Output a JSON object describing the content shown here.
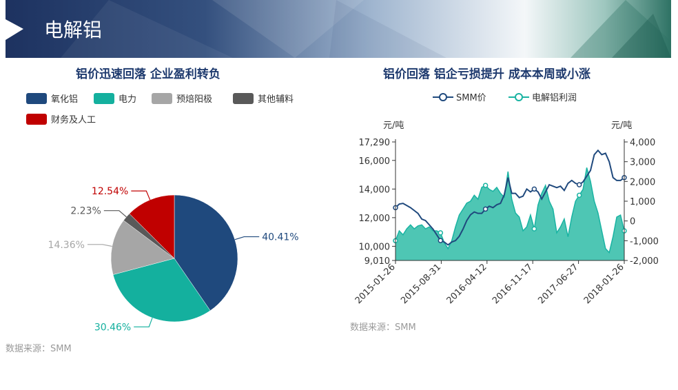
{
  "banner": {
    "title": "电解铝"
  },
  "chart_data": [
    {
      "type": "pie",
      "title": "铝价迅速回落 企业盈利转负",
      "source": "数据来源：SMM",
      "slices": [
        {
          "name": "氧化铝",
          "value": 40.41,
          "label": "40.41%",
          "color": "#1f497d"
        },
        {
          "name": "电力",
          "value": 30.46,
          "label": "30.46%",
          "color": "#14b09e"
        },
        {
          "name": "预焙阳极",
          "value": 14.36,
          "label": "14.36%",
          "color": "#a6a6a6"
        },
        {
          "name": "其他辅料",
          "value": 2.23,
          "label": "2.23%",
          "color": "#595959"
        },
        {
          "name": "财务及人工",
          "value": 12.54,
          "label": "12.54%",
          "color": "#c00000"
        }
      ]
    },
    {
      "type": "line",
      "title": "铝价回落 铝企亏损提升 成本本周或小涨",
      "source": "数据来源：SMM",
      "left_unit": "元/吨",
      "right_unit": "元/吨",
      "left_ticks": [
        "17,290",
        "16,000",
        "14,000",
        "12,000",
        "10,000",
        "9,010"
      ],
      "right_ticks": [
        "4,000",
        "3,000",
        "2,000",
        "1,000",
        "0",
        "-1,000",
        "-2,000"
      ],
      "x_ticks": [
        "2015-01-26",
        "2015-08-31",
        "2016-04-12",
        "2016-11-17",
        "2017-06-27",
        "2018-01-26"
      ],
      "ylim_left": [
        9010,
        17290
      ],
      "ylim_right": [
        -2000,
        4000
      ],
      "series": [
        {
          "name": "SMM价",
          "axis": "left",
          "style": "line",
          "color": "#1f497d",
          "values": [
            12700,
            12950,
            13000,
            12850,
            12700,
            12500,
            12300,
            11900,
            11800,
            11500,
            11200,
            10800,
            10400,
            10300,
            10100,
            10300,
            10400,
            10700,
            11200,
            11800,
            12200,
            12400,
            12300,
            12300,
            12600,
            12800,
            12700,
            12900,
            13000,
            13600,
            14800,
            13700,
            13700,
            13400,
            13500,
            14000,
            13800,
            14000,
            13800,
            13300,
            13800,
            14300,
            14200,
            14100,
            14200,
            13900,
            14400,
            14600,
            14400,
            14300,
            14500,
            14900,
            15300,
            16400,
            16700,
            16400,
            16500,
            15900,
            14800,
            14600,
            14600,
            14800
          ]
        },
        {
          "name": "电解铝利润",
          "axis": "right",
          "style": "area",
          "color": "#19b3a2",
          "fill": "#4ec6b4",
          "values": [
            -1000,
            -500,
            -700,
            -400,
            -200,
            -400,
            -250,
            -200,
            -400,
            -300,
            -500,
            -500,
            -600,
            -1100,
            -1400,
            -1000,
            -300,
            300,
            600,
            900,
            1000,
            1300,
            1100,
            1700,
            1800,
            1600,
            1500,
            1700,
            1400,
            1200,
            2500,
            1100,
            400,
            200,
            -500,
            -300,
            300,
            -400,
            800,
            1400,
            1800,
            1000,
            600,
            -600,
            -300,
            100,
            -800,
            200,
            1000,
            1300,
            1600,
            2700,
            2000,
            1000,
            400,
            -500,
            -1400,
            -1600,
            -800,
            200,
            300,
            -500
          ]
        }
      ]
    }
  ]
}
